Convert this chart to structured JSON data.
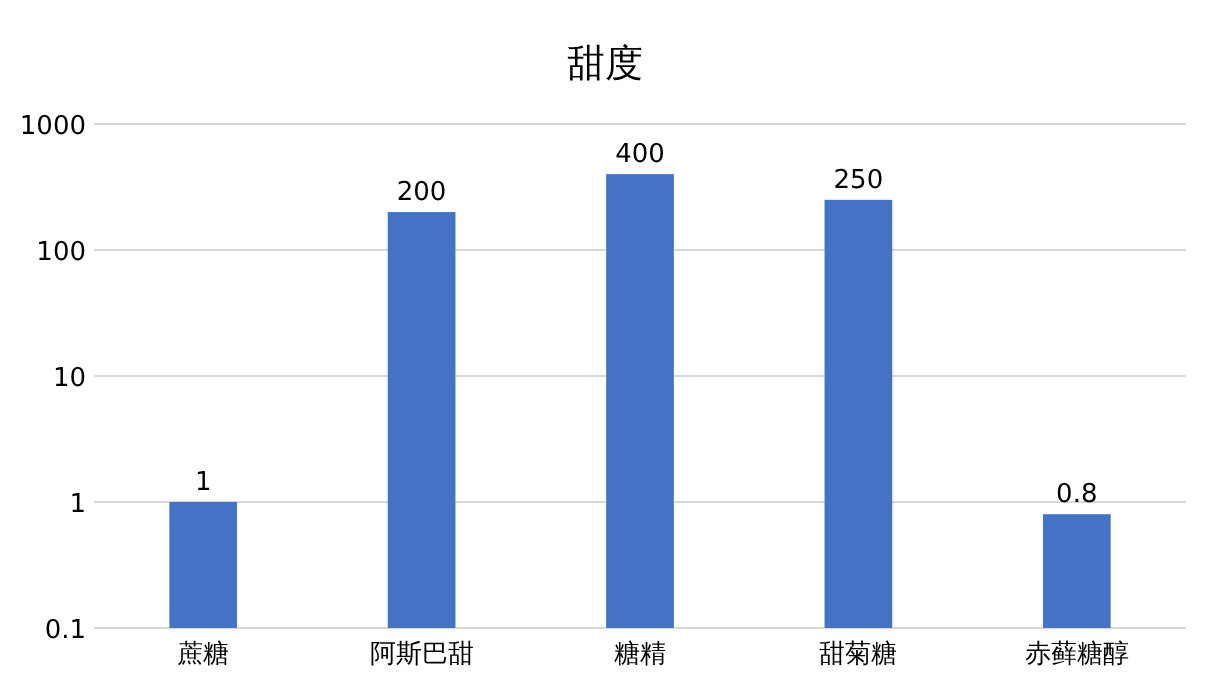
{
  "chart_data": {
    "type": "bar",
    "title": "甜度",
    "categories": [
      "蔗糖",
      "阿斯巴甜",
      "糖精",
      "甜菊糖",
      "赤藓糖醇"
    ],
    "values": [
      1,
      200,
      400,
      250,
      0.8
    ],
    "color": "#4472c4",
    "log": true,
    "ylim": [
      0.1,
      1000
    ],
    "yticks": [
      0.1,
      1,
      10,
      100,
      1000
    ],
    "grid": "y",
    "data_labels": true
  }
}
